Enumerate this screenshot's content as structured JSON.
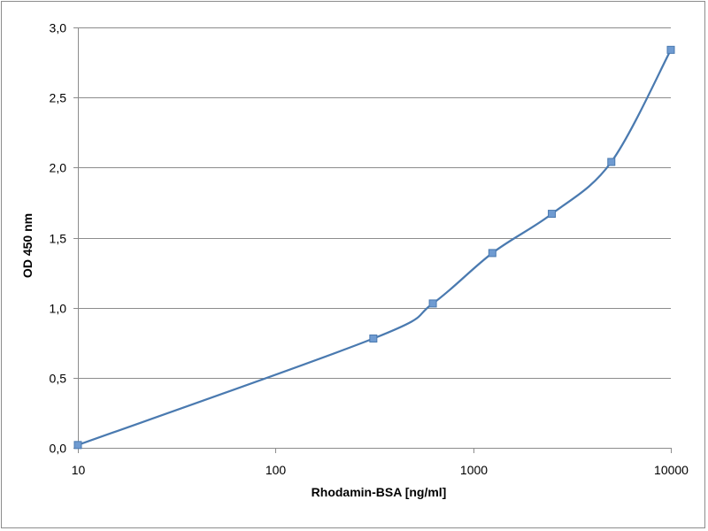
{
  "chart_data": {
    "type": "line",
    "title": "",
    "xlabel": "Rhodamin-BSA  [ng/ml]",
    "ylabel": "OD 450 nm",
    "x_scale": "log",
    "xlim": [
      10,
      10000
    ],
    "ylim": [
      0,
      3
    ],
    "x_ticks": [
      10,
      100,
      1000,
      10000
    ],
    "x_tick_labels": [
      "10",
      "100",
      "1000",
      "10000"
    ],
    "y_ticks": [
      0,
      0.5,
      1,
      1.5,
      2,
      2.5,
      3
    ],
    "y_tick_labels": [
      "0,0",
      "0,5",
      "1,0",
      "1,5",
      "2,0",
      "2,5",
      "3,0"
    ],
    "grid": "horizontal",
    "legend": "none",
    "smoothed": true,
    "series": [
      {
        "color": "#4a7ab0",
        "marker_color": "#6f9bd1",
        "x": [
          10,
          312.5,
          625,
          1250,
          2500,
          5000,
          10000
        ],
        "y": [
          0.02,
          0.78,
          1.03,
          1.39,
          1.67,
          2.04,
          2.84
        ]
      }
    ]
  }
}
